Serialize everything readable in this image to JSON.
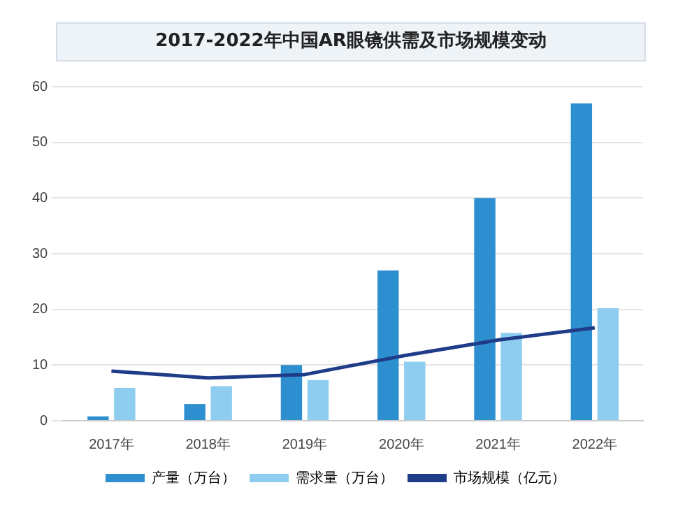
{
  "chart_data": {
    "type": "bar",
    "title": "2017-2022年中国AR眼镜供需及市场规模变动",
    "categories": [
      "2017年",
      "2018年",
      "2019年",
      "2020年",
      "2021年",
      "2022年"
    ],
    "series": [
      {
        "name": "产量（万台）",
        "color": "#2e8fd0",
        "values": [
          0.8,
          3,
          10,
          27,
          40,
          57
        ]
      },
      {
        "name": "需求量（万台）",
        "color": "#8ecdf0",
        "values": [
          5.9,
          6.2,
          7.3,
          10.6,
          15.8,
          20.2
        ]
      },
      {
        "name": "市场规模（亿元）",
        "type": "line",
        "color": "#1f3c88",
        "values": [
          8.9,
          7.7,
          8.3,
          11.6,
          14.5,
          16.7
        ]
      }
    ],
    "ylim": [
      0,
      60
    ],
    "yticks": [
      0,
      10,
      20,
      30,
      40,
      50,
      60
    ],
    "grid": "y",
    "legend": "bottom",
    "marker": "none"
  }
}
